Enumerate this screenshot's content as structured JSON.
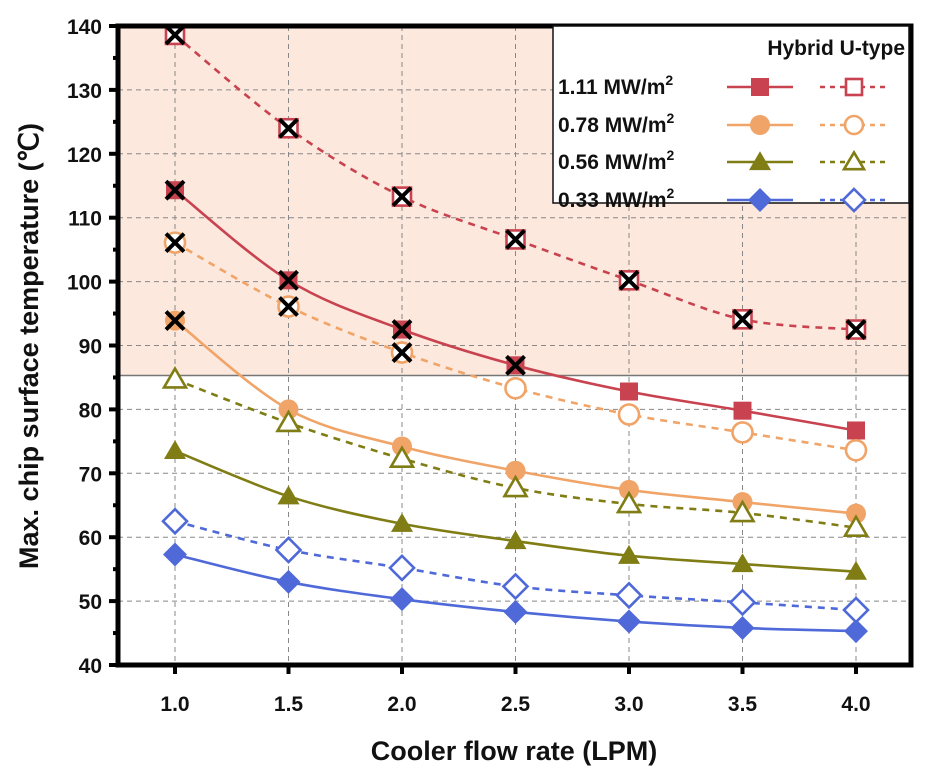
{
  "chart_data": {
    "type": "line",
    "title": "",
    "xlabel": "Cooler flow rate (LPM)",
    "ylabel": "Max. chip surface temperature (℃)",
    "x": [
      1.0,
      1.5,
      2.0,
      2.5,
      3.0,
      3.5,
      4.0
    ],
    "x_tick_labels": [
      "1.0",
      "1.5",
      "2.0",
      "2.5",
      "3.0",
      "3.5",
      "4.0"
    ],
    "xlim": [
      0.75,
      4.25
    ],
    "ylim": [
      40,
      140
    ],
    "y_ticks": [
      40,
      50,
      60,
      70,
      80,
      90,
      100,
      110,
      120,
      130,
      140
    ],
    "y_tick_labels": [
      "40",
      "50",
      "60",
      "70",
      "80",
      "90",
      "100",
      "110",
      "120",
      "130",
      "140"
    ],
    "grid": true,
    "shaded_region": {
      "y_from": 85.3,
      "y_to": 140,
      "color": "#fce8dc"
    },
    "legend": {
      "placement": "top-right",
      "header": "Hybrid U-type",
      "rows": [
        {
          "label": "1.11 MW/m",
          "sup": "2"
        },
        {
          "label": "0.78 MW/m",
          "sup": "2"
        },
        {
          "label": "0.56 MW/m",
          "sup": "2"
        },
        {
          "label": "0.33 MW/m",
          "sup": "2"
        }
      ]
    },
    "series": [
      {
        "name": "1.11 MW/m2 (solid)",
        "heat_flux": "1.11",
        "style": "solid",
        "marker": "square",
        "filled": true,
        "color": "#c8434f",
        "values": [
          114.3,
          100.2,
          92.5,
          86.9,
          82.8,
          79.8,
          76.7
        ]
      },
      {
        "name": "1.11 MW/m2 Hybrid U-type (dashed)",
        "heat_flux": "1.11",
        "style": "dashed",
        "marker": "square",
        "filled": false,
        "color": "#c8434f",
        "values": [
          138.6,
          124.0,
          113.3,
          106.6,
          100.2,
          94.1,
          92.5
        ]
      },
      {
        "name": "0.78 MW/m2 (solid)",
        "heat_flux": "0.78",
        "style": "solid",
        "marker": "circle",
        "filled": true,
        "color": "#f0a468",
        "values": [
          93.9,
          80.0,
          74.2,
          70.4,
          67.4,
          65.5,
          63.7
        ]
      },
      {
        "name": "0.78 MW/m2 Hybrid U-type (dashed)",
        "heat_flux": "0.78",
        "style": "dashed",
        "marker": "circle",
        "filled": false,
        "color": "#f0a468",
        "values": [
          106.1,
          96.1,
          88.9,
          83.3,
          79.2,
          76.4,
          73.6
        ]
      },
      {
        "name": "0.56 MW/m2 (solid)",
        "heat_flux": "0.56",
        "style": "solid",
        "marker": "triangle",
        "filled": true,
        "color": "#7f7d14",
        "values": [
          73.5,
          66.4,
          62.1,
          59.4,
          57.1,
          55.8,
          54.6
        ]
      },
      {
        "name": "0.56 MW/m2 Hybrid U-type (dashed)",
        "heat_flux": "0.56",
        "style": "dashed",
        "marker": "triangle",
        "filled": false,
        "color": "#7f7d14",
        "values": [
          84.7,
          77.9,
          72.3,
          67.7,
          65.2,
          63.8,
          61.5
        ]
      },
      {
        "name": "0.33 MW/m2 (solid)",
        "heat_flux": "0.33",
        "style": "solid",
        "marker": "diamond",
        "filled": true,
        "color": "#4f69d8",
        "values": [
          57.3,
          53.0,
          50.3,
          48.3,
          46.8,
          45.8,
          45.3
        ]
      },
      {
        "name": "0.33 MW/m2 Hybrid U-type (dashed)",
        "heat_flux": "0.33",
        "style": "dashed",
        "marker": "diamond",
        "filled": false,
        "color": "#4f69d8",
        "values": [
          62.5,
          58.0,
          55.2,
          52.3,
          50.9,
          49.8,
          48.6
        ]
      }
    ],
    "exceeded_markers": {
      "symbol": "X",
      "color": "#000000",
      "points": [
        {
          "x": 1.0,
          "y": 138.6
        },
        {
          "x": 1.5,
          "y": 124.0
        },
        {
          "x": 2.0,
          "y": 113.3
        },
        {
          "x": 2.5,
          "y": 106.6
        },
        {
          "x": 3.0,
          "y": 100.2
        },
        {
          "x": 3.5,
          "y": 94.1
        },
        {
          "x": 4.0,
          "y": 92.5
        },
        {
          "x": 1.0,
          "y": 114.3
        },
        {
          "x": 1.5,
          "y": 100.2
        },
        {
          "x": 2.0,
          "y": 92.5
        },
        {
          "x": 2.5,
          "y": 86.9
        },
        {
          "x": 1.0,
          "y": 106.1
        },
        {
          "x": 1.5,
          "y": 96.1
        },
        {
          "x": 2.0,
          "y": 88.9
        },
        {
          "x": 1.0,
          "y": 93.9
        }
      ]
    }
  }
}
